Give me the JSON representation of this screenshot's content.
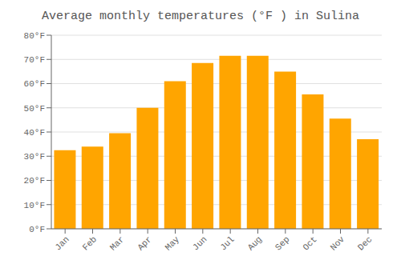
{
  "chart_data": {
    "type": "bar",
    "title": "Average monthly temperatures (°F ) in Sulina",
    "categories": [
      "Jan",
      "Feb",
      "Mar",
      "Apr",
      "May",
      "Jun",
      "Jul",
      "Aug",
      "Sep",
      "Oct",
      "Nov",
      "Dec"
    ],
    "values": [
      32.5,
      34.0,
      39.5,
      50.0,
      61.0,
      68.5,
      71.5,
      71.5,
      65.0,
      55.5,
      45.5,
      37.0
    ],
    "color": "#FFA500",
    "ylim": [
      0,
      80
    ],
    "yticks": [
      {
        "value": 0,
        "label": "0°F"
      },
      {
        "value": 10,
        "label": "10°F"
      },
      {
        "value": 20,
        "label": "20°F"
      },
      {
        "value": 30,
        "label": "30°F"
      },
      {
        "value": 40,
        "label": "40°F"
      },
      {
        "value": 50,
        "label": "50°F"
      },
      {
        "value": 60,
        "label": "60°F"
      },
      {
        "value": 70,
        "label": "70°F"
      },
      {
        "value": 80,
        "label": "80°F"
      }
    ],
    "grid": true
  }
}
